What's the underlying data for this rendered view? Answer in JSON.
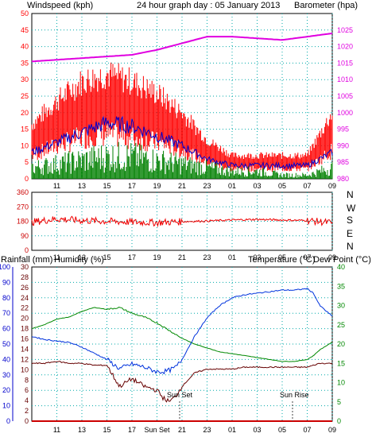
{
  "header": {
    "left_label": "Windspeed (kph)",
    "title": "24 hour graph day : 05 January 2013",
    "right_label": "Barometer (hpa)"
  },
  "bottom_header": {
    "rain_label": "Rainfall (mm)",
    "humidity_label": "Humidity (%)",
    "temp_label": "Temperature (°C)",
    "dew_label": "Dew Point (°C)"
  },
  "colors": {
    "wind_gust": "#ff0000",
    "wind_avg": "#0000cc",
    "wind_speed": "#008000",
    "barometer": "#e000e0",
    "direction": "#ee0000",
    "humidity": "#0033dd",
    "temperature": "#008800",
    "dewpoint": "#660000",
    "rain": "#cc0000",
    "grid": "#00aaaa"
  },
  "chart_data": [
    {
      "type": "line",
      "title": "24 hour graph day : 05 January 2013",
      "x_ticks": [
        "11",
        "13",
        "15",
        "17",
        "19",
        "21",
        "23",
        "01",
        "03",
        "05",
        "07",
        "09"
      ],
      "left_axis": {
        "label": "Windspeed (kph)",
        "ylim": [
          0,
          50
        ],
        "ticks": [
          0,
          5,
          10,
          15,
          20,
          25,
          30,
          35,
          40,
          45,
          50
        ]
      },
      "right_axis": {
        "label": "Barometer (hpa)",
        "ylim": [
          980,
          1030
        ],
        "ticks": [
          980,
          985,
          990,
          995,
          1000,
          1005,
          1010,
          1015,
          1020,
          1025
        ]
      },
      "x_hours": [
        9,
        11,
        13,
        15,
        17,
        19,
        21,
        23,
        25,
        27,
        29,
        31,
        33
      ],
      "series": [
        {
          "name": "Windspeed (kph)",
          "axis": "left",
          "values": [
            8,
            11,
            14,
            17,
            16,
            13,
            10,
            6,
            4,
            4,
            4,
            4,
            8
          ]
        },
        {
          "axis": "left",
          "values": [
            14,
            20,
            25,
            27,
            25,
            22,
            17,
            10,
            6,
            6,
            6,
            6,
            17
          ]
        },
        {
          "axis": "left",
          "values": [
            3,
            4,
            5,
            6,
            6,
            5,
            4,
            3,
            2,
            2,
            1,
            1,
            3
          ]
        },
        {
          "name": "Barometer (hpa)",
          "axis": "right",
          "values": [
            1015.5,
            1016,
            1016.5,
            1017,
            1017.5,
            1019,
            1021,
            1023,
            1023,
            1022.5,
            1022,
            1023,
            1024
          ]
        }
      ]
    },
    {
      "type": "line",
      "x_ticks": [
        "11",
        "13",
        "15",
        "17",
        "19",
        "21",
        "23",
        "01",
        "03",
        "05",
        "07",
        "09"
      ],
      "y_ticks": [
        0,
        90,
        180,
        270,
        360
      ],
      "compass": [
        "N",
        "W",
        "S",
        "E",
        "N"
      ],
      "ylim": [
        0,
        360
      ],
      "x_hours": [
        9,
        11,
        13,
        15,
        17,
        19,
        21,
        23,
        25,
        27,
        29,
        31,
        33
      ],
      "series": [
        {
          "name": "Wind direction",
          "values": [
            175,
            195,
            185,
            180,
            175,
            172,
            178,
            182,
            188,
            192,
            188,
            185,
            170
          ]
        }
      ]
    },
    {
      "type": "line",
      "x_ticks": [
        "11",
        "13",
        "15",
        "17",
        "Sun Set",
        "21",
        "23",
        "01",
        "03",
        "05",
        "07",
        "09"
      ],
      "rain_axis": {
        "label": "Rainfall (mm)",
        "ylim": [
          0,
          30
        ],
        "ticks": [
          0,
          2,
          4,
          6,
          8,
          10,
          12,
          14,
          16,
          18,
          20,
          22,
          24,
          26,
          28,
          30
        ]
      },
      "humidity_axis": {
        "label": "Humidity (%)",
        "ylim": [
          0,
          100
        ],
        "ticks": [
          0,
          10,
          20,
          30,
          40,
          50,
          60,
          70,
          80,
          90,
          100
        ]
      },
      "temp_axis": {
        "label": "Temperature (°C)/Dew Point (°C)",
        "ylim": [
          0,
          40
        ],
        "ticks": [
          0,
          5,
          10,
          15,
          20,
          25,
          30,
          35,
          40
        ]
      },
      "annotations": [
        "Sun Set",
        "Sun Rise"
      ],
      "x_hours": [
        9,
        10,
        11,
        12,
        13,
        14,
        15,
        16,
        17,
        18,
        19,
        19.5,
        20,
        20.5,
        21,
        22,
        23,
        24,
        25,
        26,
        27,
        28,
        29,
        30,
        31,
        31.5,
        32,
        33
      ],
      "series": [
        {
          "name": "Humidity (%)",
          "axis": "humidity",
          "values": [
            55,
            53,
            52,
            51,
            48,
            44,
            40,
            34,
            37,
            35,
            32,
            32,
            33,
            35,
            40,
            55,
            67,
            75,
            80,
            82,
            83,
            84,
            85,
            85,
            86,
            83,
            75,
            68
          ]
        },
        {
          "name": "Temperature (°C)",
          "axis": "temp",
          "values": [
            24,
            25,
            26.5,
            27,
            28.5,
            29.5,
            29,
            29.5,
            28,
            27,
            25.5,
            24.5,
            23.5,
            22.5,
            21.5,
            20,
            19,
            18,
            17.5,
            17,
            16.5,
            16,
            15.5,
            15.5,
            16,
            17,
            18.5,
            20.5
          ]
        },
        {
          "name": "Dew Point (°C)",
          "axis": "temp",
          "values": [
            15,
            15,
            15.5,
            15,
            15,
            14.5,
            14.5,
            9,
            11,
            9,
            8,
            6,
            5,
            6.5,
            9,
            12.5,
            13.5,
            13.5,
            13.5,
            14,
            14,
            14,
            14,
            14,
            14,
            14.5,
            15,
            15
          ]
        },
        {
          "name": "Rainfall (mm)",
          "axis": "rain",
          "values": [
            0,
            0,
            0,
            0,
            0,
            0,
            0,
            0,
            0,
            0,
            0,
            0,
            0,
            0,
            0,
            0,
            0,
            0,
            0,
            0,
            0,
            0,
            0,
            0,
            0,
            0,
            0,
            0
          ]
        }
      ]
    }
  ]
}
